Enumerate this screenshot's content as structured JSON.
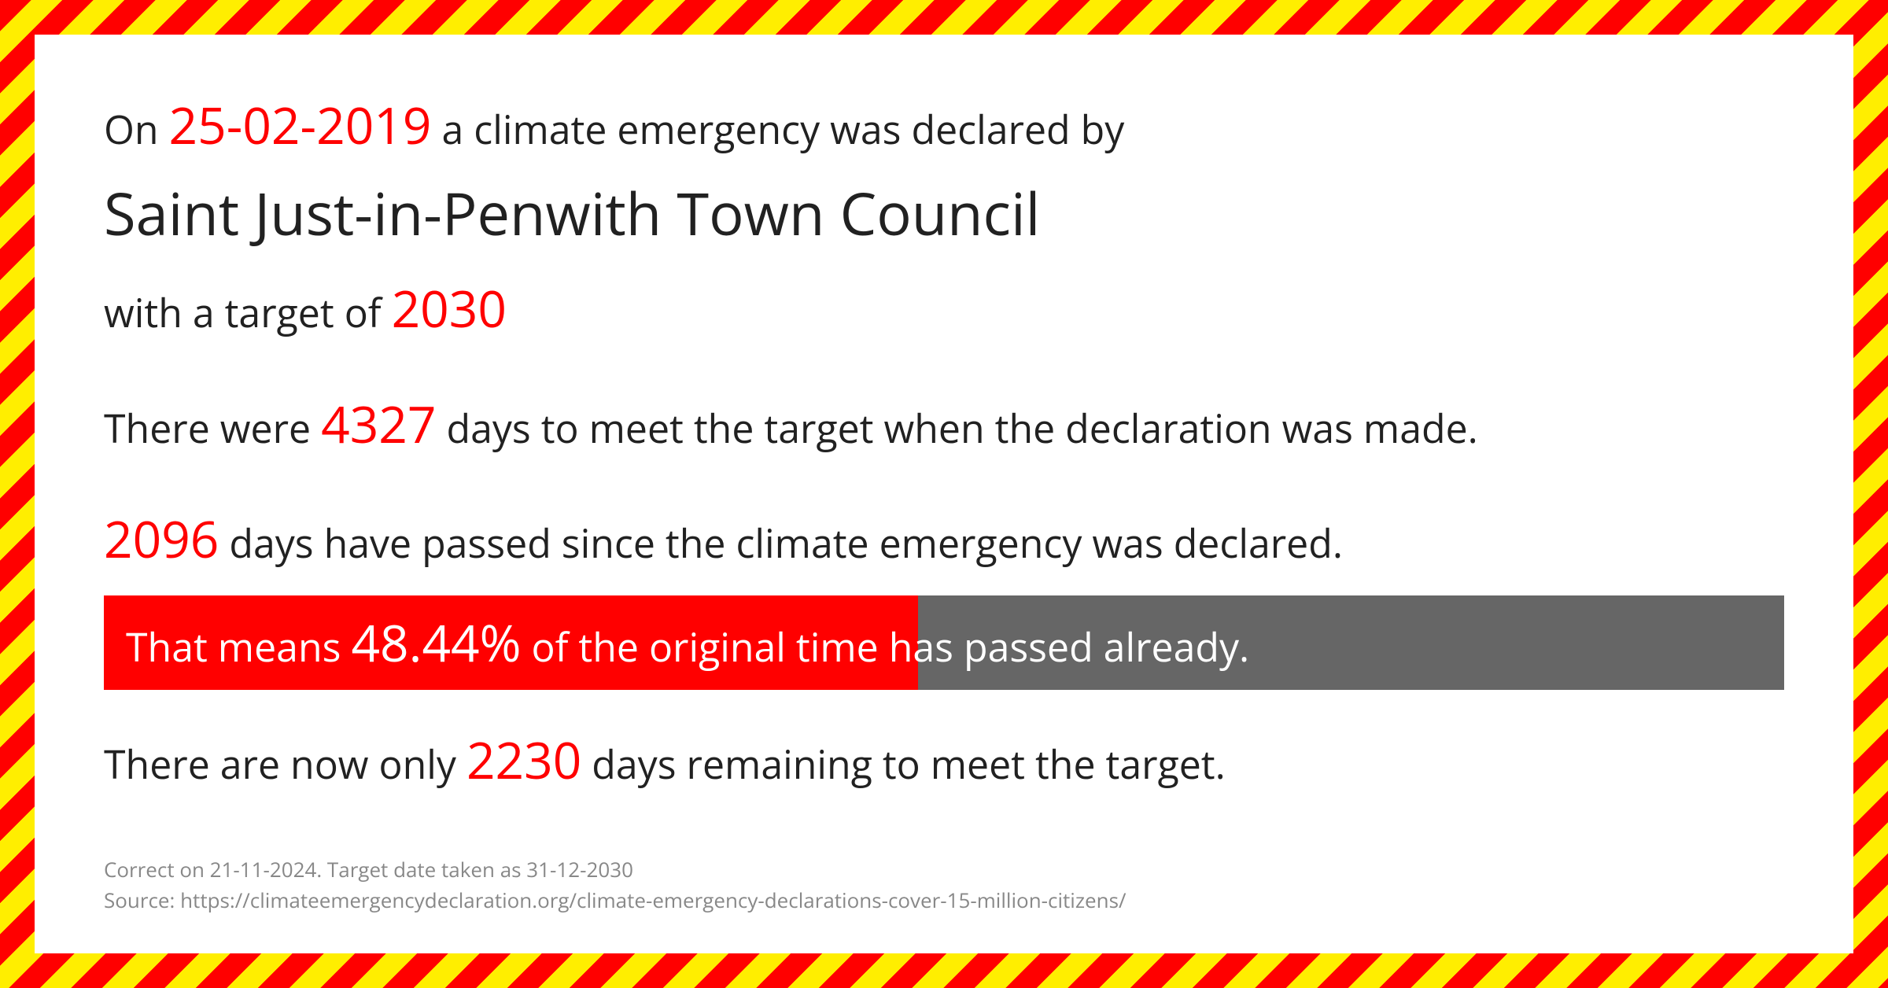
{
  "intro_prefix": "On ",
  "declaration_date": "25-02-2019",
  "intro_suffix": " a climate emergency was declared by",
  "council_name": "Saint Just-in-Penwith Town Council",
  "target_prefix": "with a target of  ",
  "target_year": "2030",
  "days_total_prefix": "There were ",
  "days_total": "4327",
  "days_total_suffix": "  days to meet the target when the declaration was made.",
  "days_passed": "2096",
  "days_passed_suffix": " days have passed since the climate emergency was declared.",
  "bar_prefix": "That means  ",
  "percent": "48.44%",
  "bar_suffix": " of the original time has passed already.",
  "remaining_prefix": "There are now only ",
  "days_remaining": "2230",
  "remaining_suffix": " days remaining to meet the target.",
  "progress_percent": 48.44,
  "footer_line1": "Correct on 21-11-2024. Target date taken as 31-12-2030",
  "footer_line2": "Source: https://climateemergencydeclaration.org/climate-emergency-declarations-cover-15-million-citizens/",
  "colors": {
    "highlight": "#ff0000",
    "text": "#212121",
    "bar_bg": "#666666",
    "bar_fill": "#ff0000",
    "bar_text": "#ffffff",
    "footer": "#888888",
    "card_bg": "#ffffff",
    "stripe_a": "#ff0000",
    "stripe_b": "#ffee00"
  }
}
